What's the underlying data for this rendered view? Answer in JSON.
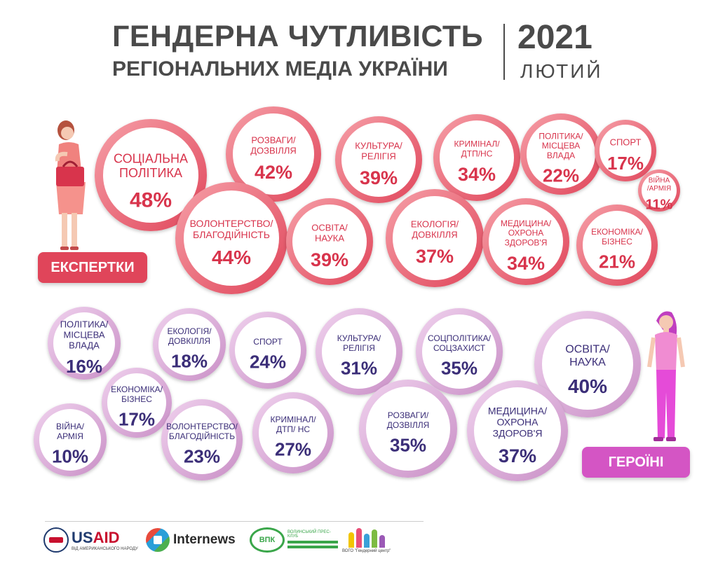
{
  "title": {
    "line1": "ГЕНДЕРНА ЧУТЛИВІСТЬ",
    "line2": "РЕГІОНАЛЬНИХ МЕДІА УКРАЇНИ",
    "year": "2021",
    "month": "ЛЮТИЙ"
  },
  "colors": {
    "experts": "#e0455a",
    "heroines": "#d455c4",
    "experts_text": "#d8344c",
    "heroines_text": "#3b2e78"
  },
  "tags": {
    "experts": "ЕКСПЕРТКИ",
    "heroines": "ГЕРОЇНІ"
  },
  "icons": {
    "experts_figure": "woman-with-bag-icon",
    "heroines_figure": "woman-standing-icon"
  },
  "logos": {
    "usaid_us": "US",
    "usaid_aid": "AID",
    "usaid_sub": "ВІД АМЕРИКАНСЬКОГО НАРОДУ",
    "internews": "Internews",
    "vpk_badge": "ВПК",
    "vpk_name": "ВОЛИНСЬКИЙ ПРЕС-КЛУБ",
    "gender_center": "ВОГО \"Гендерний центр\""
  },
  "chart_data": [
    {
      "type": "bubble",
      "series_name": "ЕКСПЕРТКИ",
      "categories": [
        "СОЦІАЛЬНА ПОЛІТИКА",
        "РОЗВАГИ/ ДОЗВІЛЛЯ",
        "КУЛЬТУРА/ РЕЛІГІЯ",
        "КРИМІНАЛ/ ДТП/НС",
        "ПОЛІТИКА/ МІСЦЕВА ВЛАДА",
        "СПОРТ",
        "ВІЙНА /АРМІЯ",
        "ВОЛОНТЕРСТВО/ БЛАГОДІЙНІСТЬ",
        "ОСВІТА/ НАУКА",
        "ЕКОЛОГІЯ/ ДОВКІЛЛЯ",
        "МЕДИЦИНА/ ОХРОНА ЗДОРОВ'Я",
        "ЕКОНОМІКА/ БІЗНЕС"
      ],
      "values": [
        48,
        42,
        39,
        34,
        22,
        17,
        11,
        44,
        39,
        37,
        34,
        21
      ],
      "labels": [
        "48%",
        "42%",
        "39%",
        "34%",
        "22%",
        "17%",
        "11%",
        "44%",
        "39%",
        "37%",
        "34%",
        "21%"
      ],
      "bubbles": [
        {
          "lines": [
            "СОЦІАЛЬНА",
            "ПОЛІТИКА"
          ],
          "value": 48,
          "label": "48%"
        },
        {
          "lines": [
            "РОЗВАГИ/",
            "ДОЗВІЛЛЯ"
          ],
          "value": 42,
          "label": "42%"
        },
        {
          "lines": [
            "КУЛЬТУРА/",
            "РЕЛІГІЯ"
          ],
          "value": 39,
          "label": "39%"
        },
        {
          "lines": [
            "КРИМІНАЛ/",
            "ДТП/НС"
          ],
          "value": 34,
          "label": "34%"
        },
        {
          "lines": [
            "ПОЛІТИКА/",
            "МІСЦЕВА",
            "ВЛАДА"
          ],
          "value": 22,
          "label": "22%"
        },
        {
          "lines": [
            "СПОРТ"
          ],
          "value": 17,
          "label": "17%"
        },
        {
          "lines": [
            "ВІЙНА",
            "/АРМІЯ"
          ],
          "value": 11,
          "label": "11%"
        },
        {
          "lines": [
            "ВОЛОНТЕРСТВО/",
            "БЛАГОДІЙНІСТЬ"
          ],
          "value": 44,
          "label": "44%"
        },
        {
          "lines": [
            "ОСВІТА/",
            "НАУКА"
          ],
          "value": 39,
          "label": "39%"
        },
        {
          "lines": [
            "ЕКОЛОГІЯ/",
            "ДОВКІЛЛЯ"
          ],
          "value": 37,
          "label": "37%"
        },
        {
          "lines": [
            "МЕДИЦИНА/",
            "ОХРОНА",
            "ЗДОРОВ'Я"
          ],
          "value": 34,
          "label": "34%"
        },
        {
          "lines": [
            "ЕКОНОМІКА/",
            "БІЗНЕС"
          ],
          "value": 21,
          "label": "21%"
        }
      ]
    },
    {
      "type": "bubble",
      "series_name": "ГЕРОЇНІ",
      "categories": [
        "ПОЛІТИКА/ МІСЦЕВА ВЛАДА",
        "ЕКОЛОГІЯ/ ДОВКІЛЛЯ",
        "СПОРТ",
        "КУЛЬТУРА/ РЕЛІГІЯ",
        "СОЦПОЛІТИКА/ СОЦЗАХИСТ",
        "ОСВІТА/ НАУКА",
        "ЕКОНОМІКА/ БІЗНЕС",
        "ВІЙНА/ АРМІЯ",
        "ВОЛОНТЕРСТВО/ БЛАГОДІЙНІСТЬ",
        "КРИМІНАЛ/ ДТП/ НС",
        "РОЗВАГИ/ ДОЗВІЛЛЯ",
        "МЕДИЦИНА/ ОХРОНА ЗДОРОВ'Я"
      ],
      "values": [
        16,
        18,
        24,
        31,
        35,
        40,
        17,
        10,
        23,
        27,
        35,
        37
      ],
      "labels": [
        "16%",
        "18%",
        "24%",
        "31%",
        "35%",
        "40%",
        "17%",
        "10%",
        "23%",
        "27%",
        "35%",
        "37%"
      ],
      "bubbles": [
        {
          "lines": [
            "ПОЛІТИКА/",
            "МІСЦЕВА",
            "ВЛАДА"
          ],
          "value": 16,
          "label": "16%"
        },
        {
          "lines": [
            "ЕКОЛОГІЯ/",
            "ДОВКІЛЛЯ"
          ],
          "value": 18,
          "label": "18%"
        },
        {
          "lines": [
            "СПОРТ"
          ],
          "value": 24,
          "label": "24%"
        },
        {
          "lines": [
            "КУЛЬТУРА/",
            "РЕЛІГІЯ"
          ],
          "value": 31,
          "label": "31%"
        },
        {
          "lines": [
            "СОЦПОЛІТИКА/",
            "СОЦЗАХИСТ"
          ],
          "value": 35,
          "label": "35%"
        },
        {
          "lines": [
            "ОСВІТА/",
            "НАУКА"
          ],
          "value": 40,
          "label": "40%"
        },
        {
          "lines": [
            "ЕКОНОМІКА/",
            "БІЗНЕС"
          ],
          "value": 17,
          "label": "17%"
        },
        {
          "lines": [
            "ВІЙНА/",
            "АРМІЯ"
          ],
          "value": 10,
          "label": "10%"
        },
        {
          "lines": [
            "ВОЛОНТЕРСТВО/",
            "БЛАГОДІЙНІСТЬ"
          ],
          "value": 23,
          "label": "23%"
        },
        {
          "lines": [
            "КРИМІНАЛ/",
            "ДТП/ НС"
          ],
          "value": 27,
          "label": "27%"
        },
        {
          "lines": [
            "РОЗВАГИ/",
            "ДОЗВІЛЛЯ"
          ],
          "value": 35,
          "label": "35%"
        },
        {
          "lines": [
            "МЕДИЦИНА/",
            "ОХРОНА",
            "ЗДОРОВ'Я"
          ],
          "value": 37,
          "label": "37%"
        }
      ]
    }
  ]
}
